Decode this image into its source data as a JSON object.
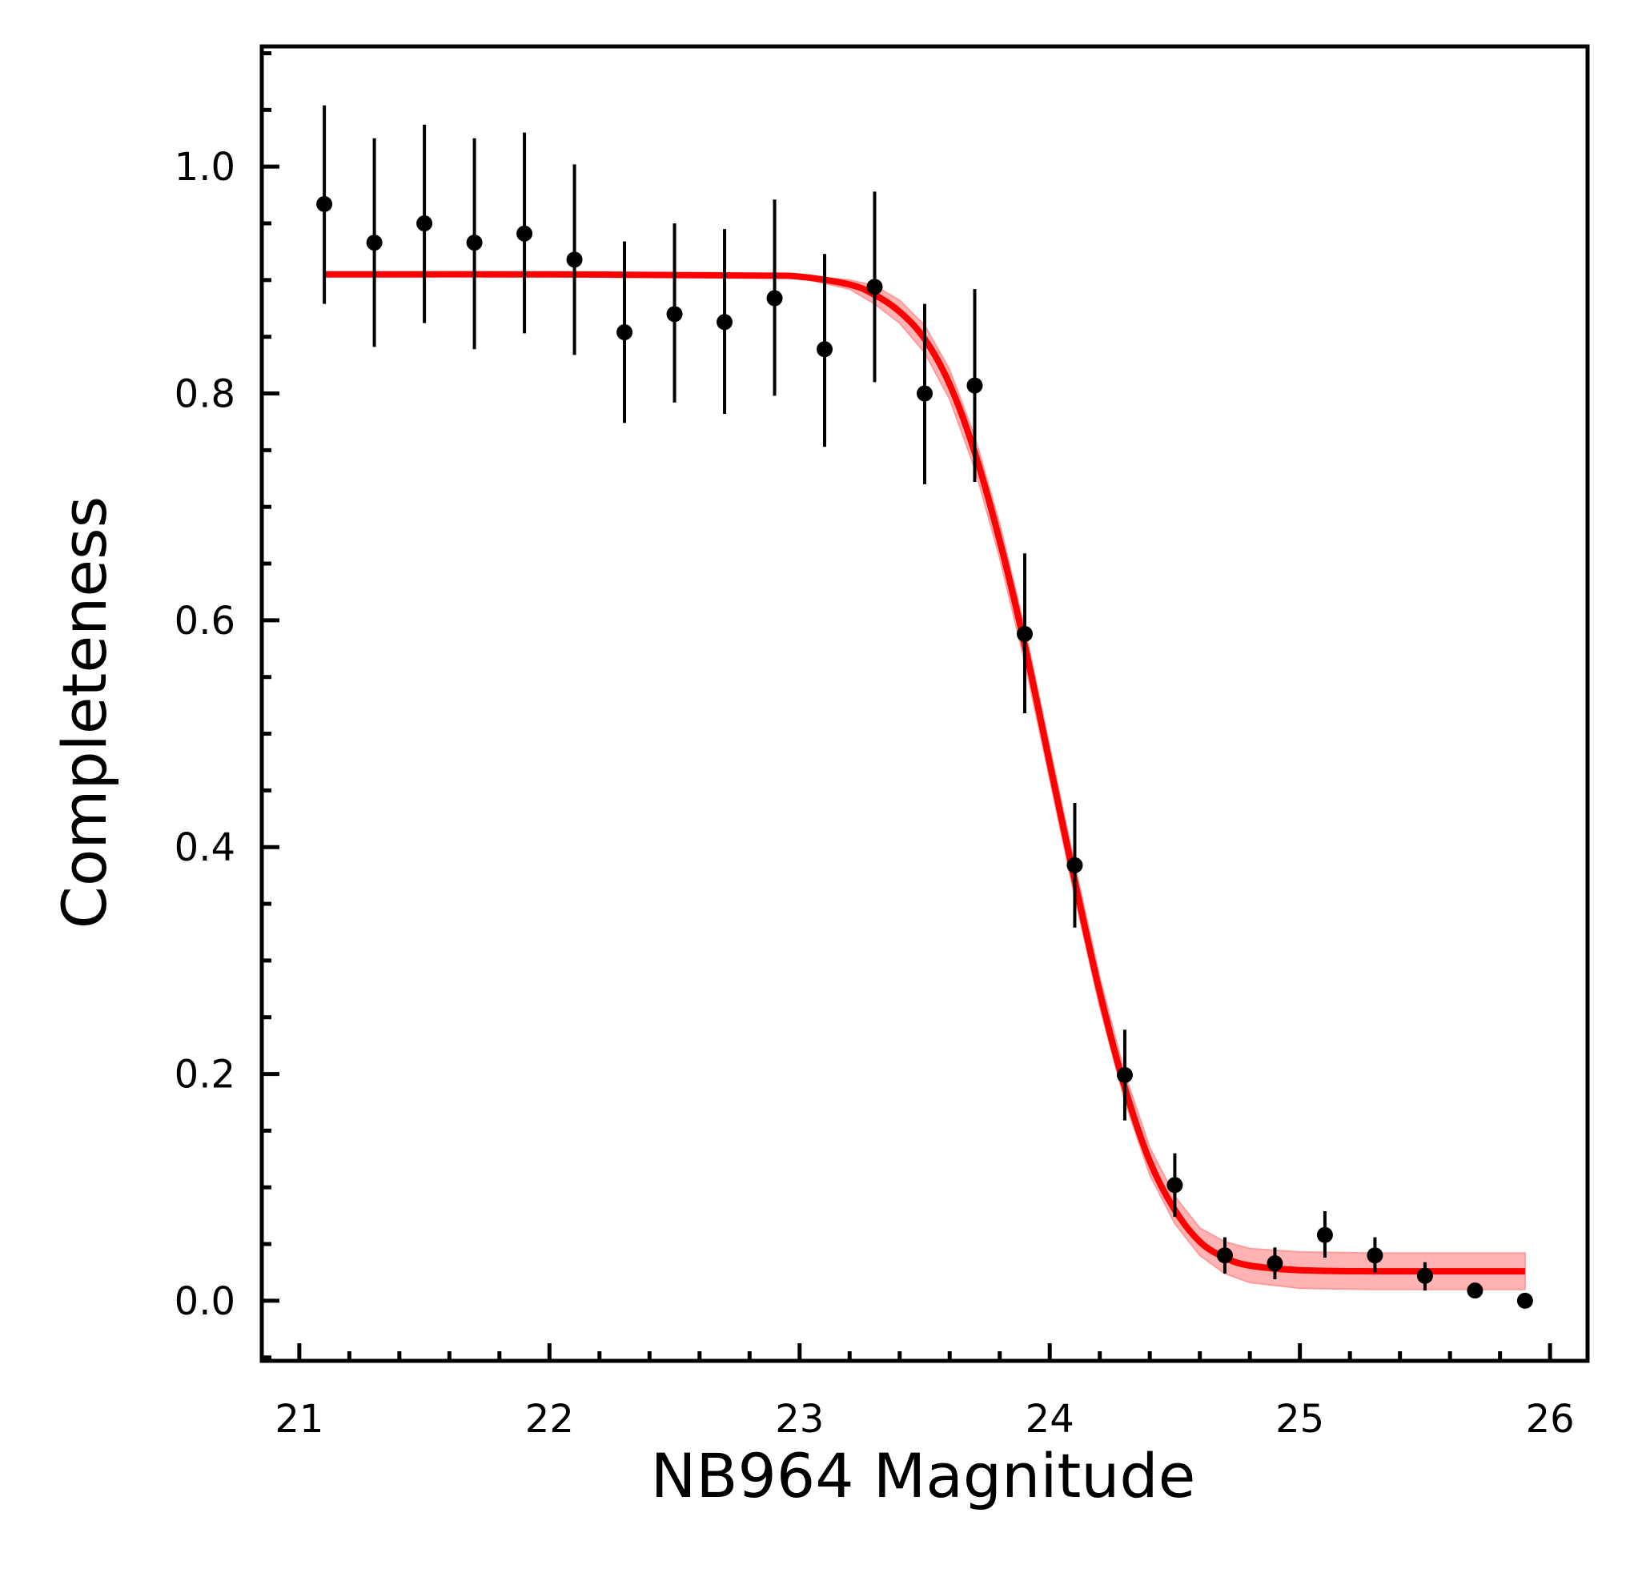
{
  "chart_data": {
    "type": "scatter",
    "xlabel": "NB964 Magnitude",
    "ylabel": "Completeness",
    "xlim": [
      20.85,
      26.15
    ],
    "ylim": [
      -0.053,
      1.106
    ],
    "x_ticks": [
      21,
      22,
      23,
      24,
      25,
      26
    ],
    "x_tick_labels": [
      "21",
      "22",
      "23",
      "24",
      "25",
      "26"
    ],
    "y_ticks": [
      0.0,
      0.2,
      0.4,
      0.6,
      0.8,
      1.0
    ],
    "y_tick_labels": [
      "0.0",
      "0.2",
      "0.4",
      "0.6",
      "0.8",
      "1.0"
    ],
    "grid": false,
    "legend": "none",
    "colors": {
      "points": "#000000",
      "fit": "#ff0000",
      "band": "#ff9a9a"
    },
    "series": [
      {
        "kind": "points-with-errorbars",
        "x": [
          21.1,
          21.3,
          21.5,
          21.7,
          21.9,
          22.1,
          22.3,
          22.5,
          22.7,
          22.9,
          23.1,
          23.3,
          23.5,
          23.7,
          23.9,
          24.1,
          24.3,
          24.5,
          24.7,
          24.9,
          25.1,
          25.3,
          25.5,
          25.7,
          25.9
        ],
        "y": [
          0.967,
          0.933,
          0.95,
          0.933,
          0.941,
          0.918,
          0.854,
          0.87,
          0.863,
          0.884,
          0.839,
          0.894,
          0.8,
          0.807,
          0.588,
          0.384,
          0.199,
          0.102,
          0.04,
          0.033,
          0.058,
          0.04,
          0.022,
          0.009,
          0.0
        ],
        "yerr_low": [
          0.088,
          0.092,
          0.088,
          0.094,
          0.088,
          0.084,
          0.08,
          0.078,
          0.081,
          0.086,
          0.086,
          0.084,
          0.08,
          0.085,
          0.07,
          0.055,
          0.04,
          0.028,
          0.016,
          0.014,
          0.02,
          0.015,
          0.013,
          0.003,
          0.001
        ],
        "yerr_high": [
          0.087,
          0.092,
          0.087,
          0.092,
          0.089,
          0.084,
          0.08,
          0.08,
          0.082,
          0.087,
          0.084,
          0.084,
          0.079,
          0.085,
          0.071,
          0.055,
          0.04,
          0.028,
          0.016,
          0.014,
          0.021,
          0.016,
          0.012,
          0.003,
          0.001
        ]
      },
      {
        "kind": "fit-curve",
        "x": [
          21.1,
          22.0,
          22.8,
          23.0,
          23.2,
          23.3,
          23.4,
          23.5,
          23.6,
          23.7,
          23.8,
          23.9,
          24.0,
          24.1,
          24.2,
          24.3,
          24.4,
          24.5,
          24.6,
          24.7,
          24.8,
          25.0,
          25.3,
          25.9
        ],
        "y": [
          0.905,
          0.905,
          0.904,
          0.903,
          0.896,
          0.887,
          0.872,
          0.848,
          0.808,
          0.748,
          0.67,
          0.578,
          0.474,
          0.37,
          0.272,
          0.188,
          0.123,
          0.08,
          0.052,
          0.038,
          0.031,
          0.027,
          0.026,
          0.026
        ],
        "band_halfwidth": [
          0.0,
          0.0,
          0.0,
          0.001,
          0.004,
          0.008,
          0.01,
          0.012,
          0.013,
          0.014,
          0.015,
          0.015,
          0.014,
          0.014,
          0.013,
          0.012,
          0.012,
          0.012,
          0.012,
          0.014,
          0.015,
          0.016,
          0.016,
          0.016
        ]
      }
    ]
  }
}
